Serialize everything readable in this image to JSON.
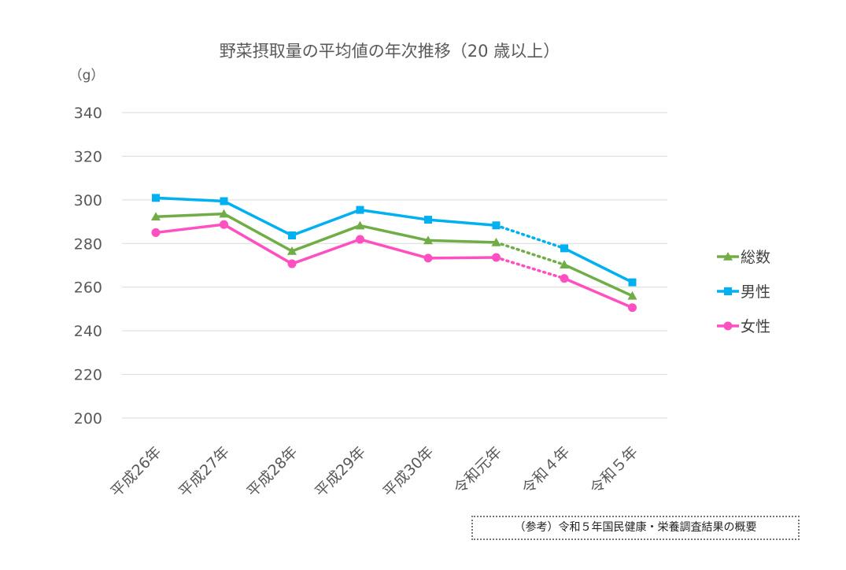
{
  "chart_data": {
    "type": "line",
    "title": "野菜摂取量の平均値の年次推移（20 歳以上）",
    "ylabel": "（g）",
    "xlabel": "",
    "categories": [
      "平成26年",
      "平成27年",
      "平成28年",
      "平成29年",
      "平成30年",
      "令和元年",
      "令和４年",
      "令和５年"
    ],
    "ylim": [
      200,
      340
    ],
    "yticks": [
      200,
      220,
      240,
      260,
      280,
      300,
      320,
      340
    ],
    "grid": true,
    "legend_position": "right",
    "gap_between": [
      "令和元年",
      "令和４年"
    ],
    "series": [
      {
        "name": "総数",
        "color": "#70AD47",
        "marker": "triangle",
        "values": [
          292.3,
          293.6,
          276.5,
          288.2,
          281.4,
          280.5,
          270.3,
          256.0
        ]
      },
      {
        "name": "男性",
        "color": "#00B0F0",
        "marker": "square",
        "values": [
          300.9,
          299.4,
          283.7,
          295.4,
          290.9,
          288.3,
          277.8,
          262.2
        ]
      },
      {
        "name": "女性",
        "color": "#FF4FC0",
        "marker": "circle",
        "values": [
          285.0,
          288.7,
          270.7,
          281.9,
          273.3,
          273.6,
          264.0,
          250.6
        ]
      }
    ]
  },
  "source_note": "（参考）令和５年国民健康・栄養調査結果の概要"
}
